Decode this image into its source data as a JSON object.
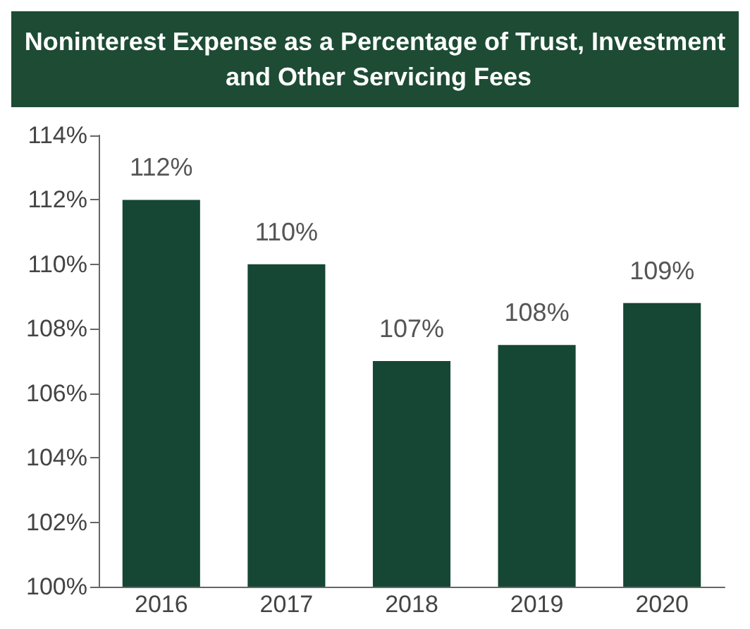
{
  "chart_data": {
    "type": "bar",
    "title": "Noninterest Expense as a Percentage of Trust, Investment and Other Servicing Fees",
    "categories": [
      "2016",
      "2017",
      "2018",
      "2019",
      "2020"
    ],
    "values": [
      112,
      110,
      107,
      107.5,
      108.8
    ],
    "value_labels": [
      "112%",
      "110%",
      "107%",
      "108%",
      "109%"
    ],
    "color": "#154734",
    "ylim": [
      100,
      114
    ],
    "yticks": [
      {
        "value": 100,
        "label": "100%"
      },
      {
        "value": 102,
        "label": "102%"
      },
      {
        "value": 104,
        "label": "104%"
      },
      {
        "value": 106,
        "label": "106%"
      },
      {
        "value": 108,
        "label": "108%"
      },
      {
        "value": 110,
        "label": "110%"
      },
      {
        "value": 112,
        "label": "112%"
      },
      {
        "value": 114,
        "label": "114%"
      }
    ],
    "grid": false
  }
}
